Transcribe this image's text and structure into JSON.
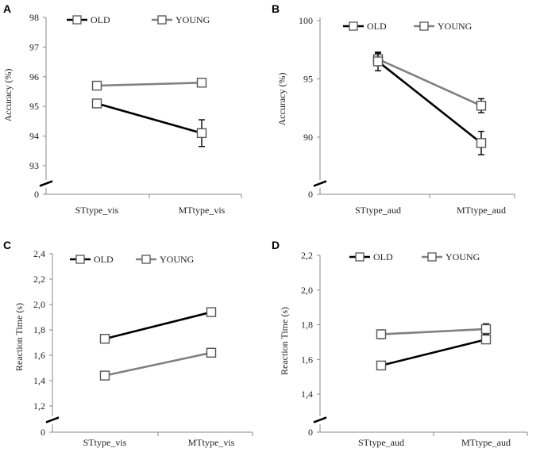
{
  "chart_data": [
    {
      "panel": "A",
      "type": "line",
      "categories": [
        "STtype_vis",
        "MTtype_vis"
      ],
      "series": [
        {
          "name": "OLD",
          "values": [
            95.1,
            94.1
          ],
          "errors": [
            0.1,
            0.45
          ],
          "color": "#000000"
        },
        {
          "name": "YOUNG",
          "values": [
            95.7,
            95.8
          ],
          "errors": [
            0.1,
            0.1
          ],
          "color": "#808080"
        }
      ],
      "ylabel": "Accuracy   (%)",
      "yticks": [
        93,
        94,
        95,
        96,
        97,
        98
      ],
      "ytick_labels": [
        "93",
        "94",
        "95",
        "96",
        "97",
        "98"
      ],
      "ylim": [
        93,
        98
      ],
      "axis_break": true,
      "zero_label": "0"
    },
    {
      "panel": "B",
      "type": "line",
      "categories": [
        "STtype_aud",
        "MTtype_aud"
      ],
      "series": [
        {
          "name": "OLD",
          "values": [
            96.5,
            89.5
          ],
          "errors": [
            0.8,
            1.0
          ],
          "color": "#000000"
        },
        {
          "name": "YOUNG",
          "values": [
            96.7,
            92.7
          ],
          "errors": [
            0.5,
            0.6
          ],
          "color": "#808080"
        }
      ],
      "ylabel": "Accuracy   (%)",
      "yticks": [
        90,
        95,
        100
      ],
      "ytick_labels": [
        "90",
        "95",
        "100"
      ],
      "ylim": [
        87.5,
        100
      ],
      "axis_break": true,
      "zero_label": "0"
    },
    {
      "panel": "C",
      "type": "line",
      "categories": [
        "STtype_vis",
        "MTtype_vis"
      ],
      "series": [
        {
          "name": "OLD",
          "values": [
            1.73,
            1.94
          ],
          "errors": [
            0.0,
            0.0
          ],
          "color": "#000000"
        },
        {
          "name": "YOUNG",
          "values": [
            1.44,
            1.62
          ],
          "errors": [
            0.0,
            0.0
          ],
          "color": "#808080"
        }
      ],
      "ylabel": "Reaction Time (s)",
      "yticks": [
        1.2,
        1.4,
        1.6,
        1.8,
        2.0,
        2.2,
        2.4
      ],
      "ytick_labels": [
        "1,2",
        "1,4",
        "1,6",
        "1,8",
        "2,0",
        "2,2",
        "2,4"
      ],
      "ylim": [
        1.2,
        2.4
      ],
      "axis_break": true,
      "zero_label": "0"
    },
    {
      "panel": "D",
      "type": "line",
      "categories": [
        "STtype_aud",
        "MTtype_aud"
      ],
      "series": [
        {
          "name": "OLD",
          "values": [
            1.565,
            1.715
          ],
          "errors": [
            0.015,
            0.02
          ],
          "color": "#000000"
        },
        {
          "name": "YOUNG",
          "values": [
            1.745,
            1.775
          ],
          "errors": [
            0.025,
            0.03
          ],
          "color": "#808080"
        }
      ],
      "ylabel": "Reaction Time  (s)",
      "yticks": [
        1.4,
        1.6,
        1.8,
        2.0,
        2.2
      ],
      "ytick_labels": [
        "1,4",
        "1,6",
        "1,8",
        "2,0",
        "2,2"
      ],
      "ylim": [
        1.3,
        2.2
      ],
      "axis_break": true,
      "zero_label": "0"
    }
  ]
}
